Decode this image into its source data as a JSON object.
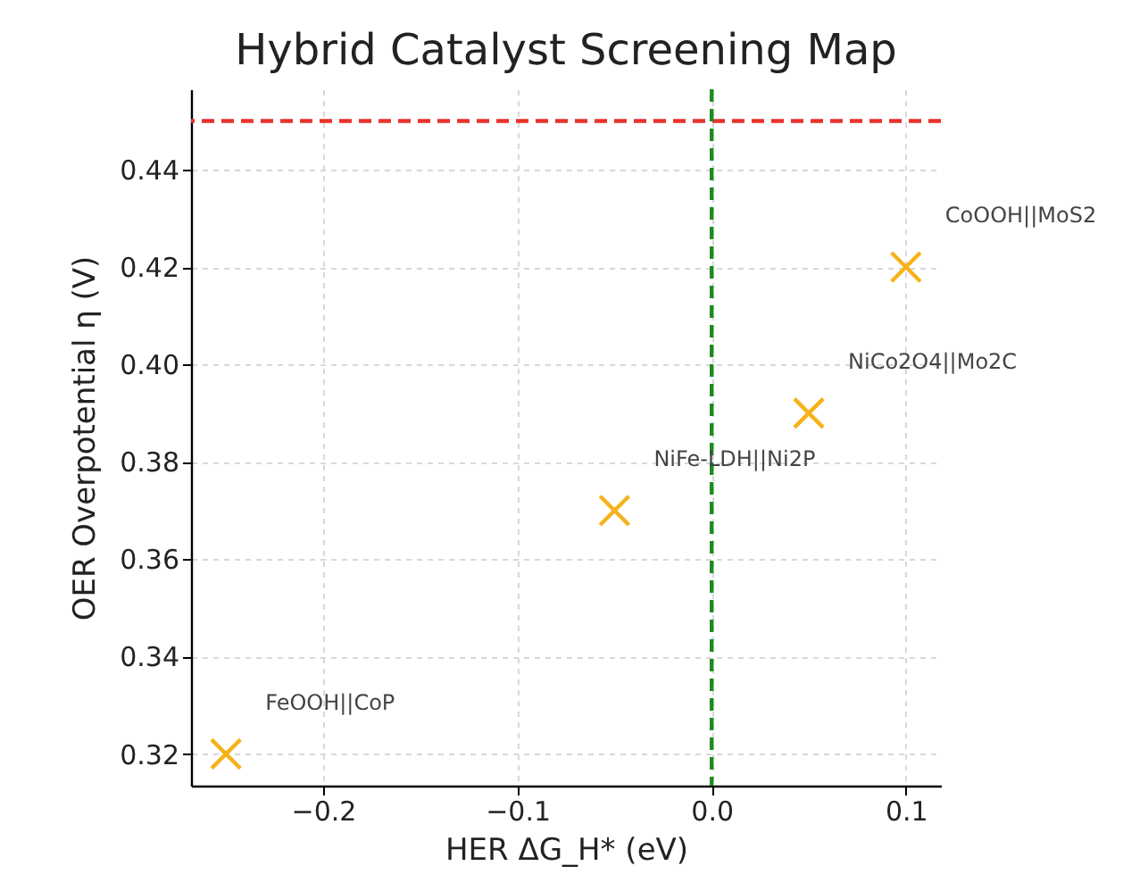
{
  "chart_data": {
    "type": "scatter",
    "title": "Hybrid Catalyst Screening Map",
    "xlabel": "HER ΔG_H* (eV)",
    "ylabel": "OER Overpotential η (V)",
    "x": [
      -0.25,
      -0.05,
      0.05,
      0.1
    ],
    "series": [
      {
        "color": "#f7b21b",
        "values": [
          0.32,
          0.37,
          0.39,
          0.42
        ]
      }
    ],
    "marker": "cross",
    "grid": true,
    "xlim": [
      -0.268,
      0.118
    ],
    "xticks": [
      {
        "value": -0.2,
        "label": "−0.2"
      },
      {
        "value": -0.1,
        "label": "−0.1"
      },
      {
        "value": 0,
        "label": "0.0"
      },
      {
        "value": 0.1,
        "label": "0.1"
      }
    ],
    "ylim": [
      0.3135,
      0.4565
    ],
    "yticks": [
      {
        "value": 0.32,
        "label": "0.32"
      },
      {
        "value": 0.34,
        "label": "0.34"
      },
      {
        "value": 0.36,
        "label": "0.36"
      },
      {
        "value": 0.38,
        "label": "0.38"
      },
      {
        "value": 0.4,
        "label": "0.40"
      },
      {
        "value": 0.42,
        "label": "0.42"
      },
      {
        "value": 0.44,
        "label": "0.44"
      }
    ],
    "ref_lines": [
      {
        "axis": "y",
        "value": 0.45,
        "color": "#e8322b",
        "line_style": "dashed"
      },
      {
        "axis": "x",
        "value": 0,
        "color": "#1e8c1e",
        "line_style": "dashed"
      }
    ],
    "annotations": [
      {
        "text": "FeOOH||CoP",
        "x": -0.25,
        "y": 0.32
      },
      {
        "text": "NiFe-LDH||Ni2P",
        "x": -0.05,
        "y": 0.37
      },
      {
        "text": "NiCo2O4||Mo2C",
        "x": 0.05,
        "y": 0.39
      },
      {
        "text": "CoOOH||MoS2",
        "x": 0.1,
        "y": 0.42
      }
    ]
  }
}
